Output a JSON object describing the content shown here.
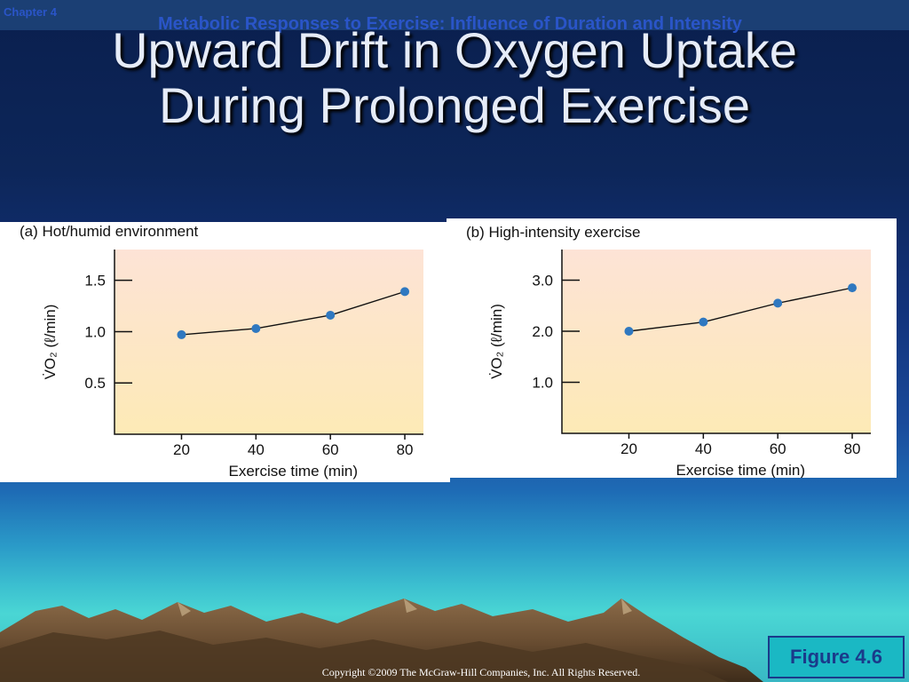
{
  "header": {
    "chapter": "Chapter 4",
    "note": "Metabolic Responses to Exercise: Influence of Duration and Intensity"
  },
  "slide": {
    "title_line1": "Upward Drift in Oxygen Uptake",
    "title_line2": "During Prolonged Exercise"
  },
  "figure_label": "Figure 4.6",
  "copyright": "Copyright ©2009 The McGraw-Hill Companies, Inc. All Rights Reserved.",
  "colors": {
    "plot_top": "#fde3d6",
    "plot_bottom": "#fdeab6",
    "point": "#2f78c0",
    "line": "#111111"
  },
  "chart_data": [
    {
      "type": "line",
      "title": "(a) Hot/humid environment",
      "xlabel": "Exercise time (min)",
      "ylabel": "V̇O₂ (ℓ/min)",
      "x": [
        20,
        40,
        60,
        80
      ],
      "y": [
        0.97,
        1.03,
        1.16,
        1.39
      ],
      "xticks": [
        20,
        40,
        60,
        80
      ],
      "yticks": [
        0.5,
        1.0,
        1.5
      ],
      "ytick_labels": [
        "0.5",
        "1.0",
        "1.5"
      ],
      "xlim": [
        2,
        85
      ],
      "ylim": [
        0.0,
        1.8
      ]
    },
    {
      "type": "line",
      "title": "(b) High-intensity exercise",
      "xlabel": "Exercise time (min)",
      "ylabel": "V̇O₂ (ℓ/min)",
      "x": [
        20,
        40,
        60,
        80
      ],
      "y": [
        2.0,
        2.18,
        2.55,
        2.85
      ],
      "xticks": [
        20,
        40,
        60,
        80
      ],
      "yticks": [
        1.0,
        2.0,
        3.0
      ],
      "ytick_labels": [
        "1.0",
        "2.0",
        "3.0"
      ],
      "xlim": [
        2,
        85
      ],
      "ylim": [
        0.0,
        3.6
      ]
    }
  ]
}
